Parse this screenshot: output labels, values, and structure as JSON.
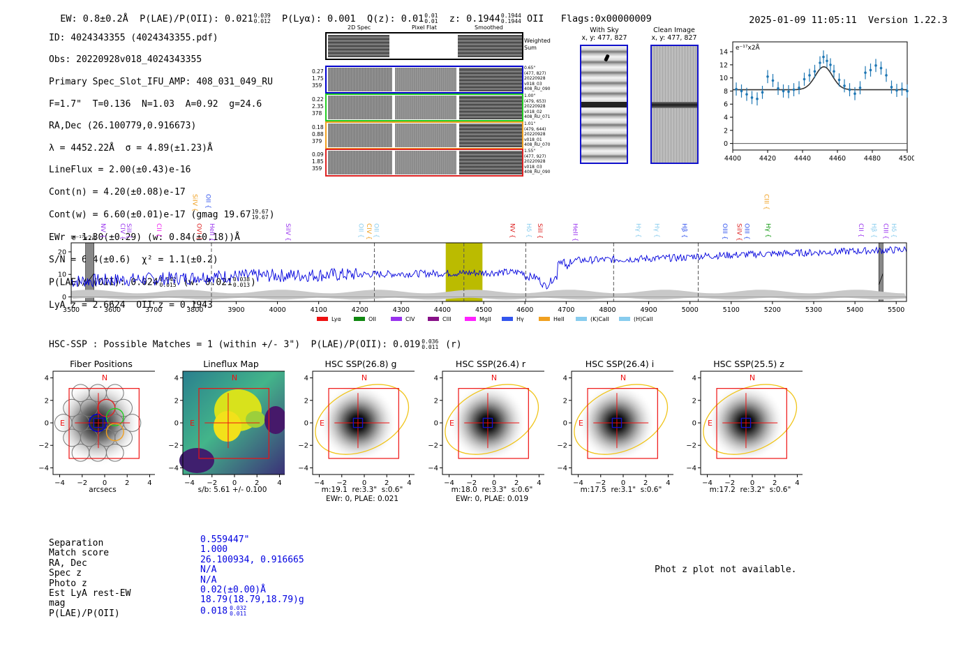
{
  "header": {
    "ew": "EW: 0.8±0.2Å",
    "plae": "P(LAE)/P(OII): 0.021",
    "plae_hi": "0.039",
    "plae_lo": "0.012",
    "plya": "P(Lyα): 0.001",
    "qz": "Q(z): 0.01",
    "qz_hi": "0.01",
    "qz_lo": "0.01",
    "z": "z: 0.1944",
    "z_hi": "0.1944",
    "z_lo": "0.1944",
    "z_line": "OII",
    "flags": "Flags:0x00000009",
    "datetime": "2025-01-09 11:05:11",
    "version": "Version 1.22.3"
  },
  "info": {
    "id": "ID: 4024343355 (4024343355.pdf)",
    "obs": "Obs: 20220928v018_4024343355",
    "primary": "Primary Spec_Slot_IFU_AMP: 408_031_049_RU",
    "fit": "F=1.7\"  T=0.136  N=1.03  A=0.92  g=24.6",
    "radec": "RA,Dec (26.100779,0.916673)",
    "lambda": "λ = 4452.22Å  σ = 4.89(±1.23)Å",
    "lineflux": "LineFlux = 2.00(±0.43)e-16",
    "contn": "Cont(n) = 4.20(±0.08)e-17",
    "contw": "Cont(w) = 6.60(±0.01)e-17 (gmag 19.67",
    "contw_hi": "19.67",
    "contw_lo": "19.67",
    "ewr": "EWr = 1.30(±0.29) (w: 0.84(±0.18))Å",
    "sn": "S/N = 6.4(±0.6)  χ² = 1.1(±0.2)",
    "plae": "P(LAE)/P(OII): 0.024",
    "plae_hi": "0.042",
    "plae_lo": "0.015",
    "plae_w": "(w: 0.021",
    "plae_w_hi": "0.038",
    "plae_w_lo": "0.013",
    "lyaz": "LyA z = 2.6624  OII z = 0.1943"
  },
  "cutouts": {
    "col_2d": "2D Spec",
    "col_flat": "Pixel Flat",
    "col_smooth": "Smoothed",
    "weighted_sum": "Weighted Sum",
    "rows": [
      {
        "color": "#0000cc",
        "left": [
          "0.27",
          "1.75",
          "359"
        ],
        "right": [
          "0.65\"",
          "(477, 827)",
          "20220928",
          "v018_03",
          "408_RU_090"
        ]
      },
      {
        "color": "#22cc22",
        "left": [
          "0.22",
          "2.35",
          "378"
        ],
        "right": [
          "1.00\"",
          "(479, 653)",
          "20220928",
          "v018_02",
          "408_RU_071"
        ]
      },
      {
        "color": "#f0a020",
        "left": [
          "0.18",
          "0.88",
          "379"
        ],
        "right": [
          "1.01\"",
          "(479, 644)",
          "20220928",
          "v018_01",
          "408_RU_070"
        ]
      },
      {
        "color": "#dd2222",
        "left": [
          "0.09",
          "1.85",
          "359"
        ],
        "right": [
          "1.55\"",
          "(477, 927)",
          "20220928",
          "v018_03",
          "408_RU_090"
        ]
      }
    ],
    "with_sky_title": "With Sky",
    "with_sky_xy": "x, y: 477, 827",
    "clean_title": "Clean Image",
    "clean_xy": "x, y: 477, 827"
  },
  "line_fit": {
    "unit": "e⁻¹⁷x2Å",
    "xticks": [
      "4400",
      "4420",
      "4440",
      "4460",
      "4480",
      "4500"
    ],
    "yticks": [
      "0",
      "2",
      "4",
      "6",
      "8",
      "10",
      "12",
      "14"
    ],
    "x": [
      4402,
      4405,
      4408,
      4411,
      4414,
      4417,
      4420,
      4423,
      4426,
      4429,
      4432,
      4435,
      4438,
      4441,
      4444,
      4447,
      4450,
      4452,
      4454,
      4456,
      4458,
      4461,
      4464,
      4467,
      4470,
      4473,
      4476,
      4479,
      4482,
      4485,
      4488,
      4491,
      4494,
      4497,
      4500
    ],
    "y": [
      8.3,
      8.0,
      7.5,
      7.0,
      6.8,
      7.8,
      10.2,
      9.6,
      8.4,
      8.0,
      7.9,
      8.2,
      8.5,
      9.8,
      10.4,
      11.0,
      12.3,
      13.2,
      12.6,
      12.0,
      11.0,
      9.7,
      8.8,
      8.2,
      7.6,
      8.5,
      10.8,
      11.2,
      11.9,
      11.5,
      10.4,
      8.6,
      8.1,
      8.3,
      8.0
    ],
    "err": 1.0,
    "model_baseline": 8.2,
    "model_center": 4452.2,
    "model_sigma": 4.9,
    "model_peak": 11.7,
    "xmin": 4400,
    "xmax": 4500,
    "ymin": -1,
    "ymax": 15.5
  },
  "spectrum": {
    "unit": "e⁻¹⁷x2Å",
    "xticks": [
      "3500",
      "3600",
      "3700",
      "3800",
      "3900",
      "4000",
      "4100",
      "4200",
      "4300",
      "4400",
      "4500",
      "4600",
      "4700",
      "4800",
      "4900",
      "5000",
      "5100",
      "5200",
      "5300",
      "5400",
      "5500"
    ],
    "yticks": [
      "0",
      "10",
      "20"
    ],
    "xmin": 3500,
    "xmax": 5525,
    "ymin": -2,
    "ymax": 24,
    "highlight": [
      4408,
      4497
    ],
    "dashed": [
      3840,
      4235,
      4452,
      4602,
      4815,
      5020
    ],
    "masked": [
      3535,
      3555,
      5458,
      5468
    ],
    "lines_top": [
      {
        "label": "SiIV",
        "x": 3790,
        "color": "#f0a020"
      },
      {
        "label": "OII",
        "x": 3822,
        "color": "#3355ee"
      },
      {
        "label": "CIII",
        "x": 5176,
        "color": "#f0a020"
      }
    ],
    "lines_mid": [
      {
        "label": "NV",
        "x": 3568,
        "color": "#9933ee"
      },
      {
        "label": "CIV",
        "x": 3615,
        "color": "#9933ee"
      },
      {
        "label": "SiII",
        "x": 3630,
        "color": "#9933ee"
      },
      {
        "label": "CII",
        "x": 3703,
        "color": "#ee22ee"
      },
      {
        "label": "OVI",
        "x": 3800,
        "color": "#dd2222"
      },
      {
        "label": "HeII",
        "x": 3832,
        "color": "#9933ee"
      },
      {
        "label": "SiIV",
        "x": 4016,
        "color": "#9933ee"
      },
      {
        "label": "OII",
        "x": 4193,
        "color": "#88ccee"
      },
      {
        "label": "CIV",
        "x": 4212,
        "color": "#f0a020"
      },
      {
        "label": "OII",
        "x": 4230,
        "color": "#88ccee"
      },
      {
        "label": "NV",
        "x": 4560,
        "color": "#dd2222"
      },
      {
        "label": "Hδ",
        "x": 4600,
        "color": "#88ccee"
      },
      {
        "label": "SiII",
        "x": 4627,
        "color": "#dd2222"
      },
      {
        "label": "HeII",
        "x": 4712,
        "color": "#9933ee"
      },
      {
        "label": "Hγ",
        "x": 4865,
        "color": "#88ccee"
      },
      {
        "label": "Hγ",
        "x": 4910,
        "color": "#88ccee"
      },
      {
        "label": "Hβ",
        "x": 4977,
        "color": "#3355ee"
      },
      {
        "label": "OIII",
        "x": 5075,
        "color": "#3355ee"
      },
      {
        "label": "SiIV",
        "x": 5110,
        "color": "#dd2222"
      },
      {
        "label": "OIII",
        "x": 5128,
        "color": "#3355ee"
      },
      {
        "label": "Hγ",
        "x": 5180,
        "color": "#119911"
      },
      {
        "label": "CII",
        "x": 5405,
        "color": "#9933ee"
      },
      {
        "label": "Hβ",
        "x": 5436,
        "color": "#88ccee"
      },
      {
        "label": "CIII",
        "x": 5465,
        "color": "#9933ee"
      },
      {
        "label": "Hδ",
        "x": 5484,
        "color": "#88ccee"
      }
    ],
    "legend": [
      {
        "label": "Lyα",
        "color": "#ee1111"
      },
      {
        "label": "OII",
        "color": "#118811"
      },
      {
        "label": "CIV",
        "color": "#9933ee"
      },
      {
        "label": "CIII",
        "color": "#881188"
      },
      {
        "label": "MgII",
        "color": "#ff22ff"
      },
      {
        "label": "Hγ",
        "color": "#3355ee"
      },
      {
        "label": "HeII",
        "color": "#f0a020"
      },
      {
        "label": "(K)CaII",
        "color": "#88ccee"
      },
      {
        "label": "(H)CaII",
        "color": "#88ccee"
      }
    ]
  },
  "hsc": {
    "summary": "HSC-SSP : Possible Matches = 1 (within +/- 3\")  P(LAE)/P(OII): 0.019",
    "summary_hi": "0.036",
    "summary_lo": "0.011",
    "summary_band": "(r)",
    "panels": [
      {
        "title": "Fiber Positions",
        "caption": "arcsecs",
        "caption2": ""
      },
      {
        "title": "Lineflux Map",
        "caption": "s/b: 5.61 +/- 0.100",
        "caption2": ""
      },
      {
        "title": "HSC SSP(26.8) g",
        "caption": "m:19.1  re:3.3\"  s:0.6\"",
        "caption2": "EWr: 0, PLAE: 0.021"
      },
      {
        "title": "HSC SSP(26.4) r",
        "caption": "m:18.0  re:3.3\"  s:0.6\"",
        "caption2": "EWr: 0, PLAE: 0.019"
      },
      {
        "title": "HSC SSP(26.4) i",
        "caption": "m:17.5  re:3.1\"  s:0.6\"",
        "caption2": ""
      },
      {
        "title": "HSC SSP(25.5) z",
        "caption": "m:17.2  re:3.2\"  s:0.6\"",
        "caption2": ""
      }
    ],
    "ticks": [
      "−4",
      "−2",
      "0",
      "2",
      "4"
    ],
    "north": "N",
    "east": "E"
  },
  "match": {
    "rows": [
      {
        "label": "Separation",
        "value": "0.559447\""
      },
      {
        "label": "Match score",
        "value": "1.000"
      },
      {
        "label": "RA, Dec",
        "value": "26.100934, 0.916665"
      },
      {
        "label": "Spec z",
        "value": "N/A"
      },
      {
        "label": "Photo z",
        "value": "N/A"
      },
      {
        "label": "Est LyA rest-EW",
        "value": "0.02(±0.00)Å"
      },
      {
        "label": "mag",
        "value": "18.79(18.79,18.79)g"
      },
      {
        "label": "P(LAE)/P(OII)",
        "value": "0.018"
      }
    ],
    "plae_hi": "0.032",
    "plae_lo": "0.011",
    "photz_msg": "Phot z plot not available."
  }
}
